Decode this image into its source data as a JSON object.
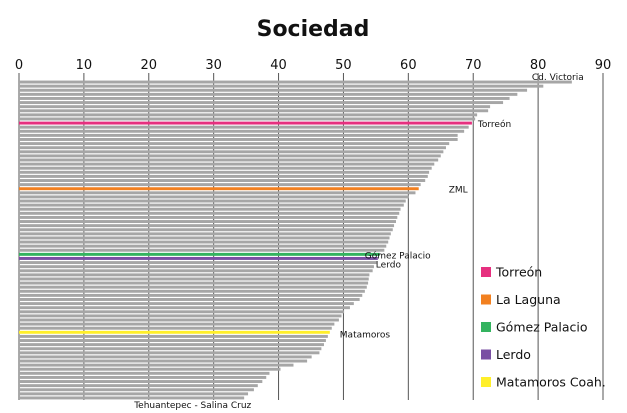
{
  "chart_data": {
    "type": "bar",
    "orientation": "horizontal",
    "title": "Sociedad",
    "xlim": [
      0,
      90
    ],
    "x_ticks": [
      0,
      10,
      20,
      30,
      40,
      50,
      60,
      70,
      80,
      90
    ],
    "grid": "vertical",
    "values": [
      85.2,
      80.8,
      78.3,
      76.8,
      75.6,
      74.6,
      72.6,
      72.3,
      70.6,
      70.3,
      69.8,
      69.3,
      68.6,
      67.6,
      67.6,
      66.3,
      65.8,
      65.4,
      65.0,
      64.6,
      64.0,
      63.6,
      63.2,
      63.0,
      62.6,
      61.9,
      61.6,
      61.1,
      60.1,
      59.6,
      59.3,
      58.8,
      58.6,
      58.3,
      58.1,
      57.8,
      57.6,
      57.3,
      57.1,
      56.9,
      56.6,
      56.3,
      55.6,
      55.3,
      55.1,
      54.7,
      54.5,
      54.0,
      53.9,
      53.8,
      53.6,
      53.3,
      52.9,
      52.5,
      51.6,
      51.0,
      50.1,
      49.7,
      49.3,
      48.6,
      48.2,
      47.9,
      47.6,
      47.3,
      47.0,
      46.6,
      46.3,
      45.1,
      44.4,
      42.3,
      40.3,
      38.6,
      38.1,
      37.5,
      36.8,
      36.2,
      35.3,
      34.7
    ],
    "highlighted": [
      {
        "index": 10,
        "series": "Torreón",
        "color": "#e6307f"
      },
      {
        "index": 26,
        "series": "La Laguna",
        "color": "#f28020"
      },
      {
        "index": 42,
        "series": "Gómez Palacio",
        "color": "#33b35f"
      },
      {
        "index": 43,
        "series": "Lerdo",
        "color": "#7a4fa3"
      },
      {
        "index": 61,
        "series": "Matamoros Coah.",
        "color": "#ffef2a"
      }
    ],
    "bar_labels": [
      {
        "index": 0,
        "text": "Cd. Victoria"
      },
      {
        "index": 10,
        "text": "Torreón"
      },
      {
        "index": 26,
        "text": "ZML"
      },
      {
        "index": 42,
        "text": "Gómez Palacio"
      },
      {
        "index": 43,
        "text": "Lerdo"
      },
      {
        "index": 61,
        "text": "Matamoros"
      },
      {
        "index": 77,
        "text": "Tehuantepec - Salina Cruz"
      }
    ],
    "legend": {
      "position": "right",
      "items": [
        {
          "label": "Torreón",
          "color": "#e6307f"
        },
        {
          "label": "La Laguna",
          "color": "#f28020"
        },
        {
          "label": "Gómez Palacio",
          "color": "#33b35f"
        },
        {
          "label": "Lerdo",
          "color": "#7a4fa3"
        },
        {
          "label": "Matamoros Coah.",
          "color": "#ffef2a"
        }
      ]
    },
    "colors": {
      "default_bar": "#a6a6a6",
      "grid": "#555555"
    }
  }
}
